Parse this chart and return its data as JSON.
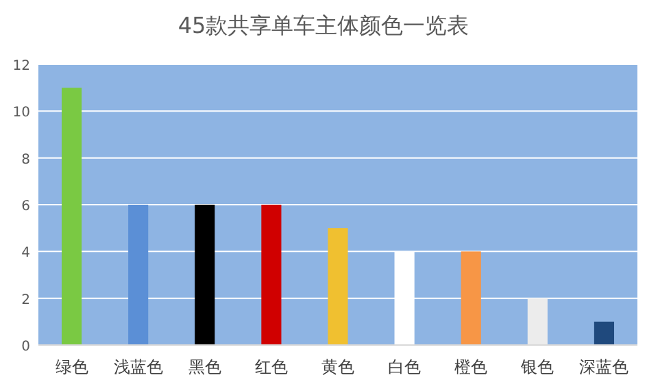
{
  "chart_data": {
    "type": "bar",
    "title": "45款共享单车主体颜色一览表",
    "categories": [
      "绿色",
      "浅蓝色",
      "黑色",
      "红色",
      "黄色",
      "白色",
      "橙色",
      "银色",
      "深蓝色"
    ],
    "values": [
      11,
      6,
      6,
      6,
      5,
      4,
      4,
      2,
      1
    ],
    "colors": [
      "#7ac943",
      "#5b8fd6",
      "#000000",
      "#d00000",
      "#f0c030",
      "#ffffff",
      "#f79646",
      "#ececec",
      "#1f497d"
    ],
    "ylim": [
      0,
      12
    ],
    "yticks": [
      0,
      2,
      4,
      6,
      8,
      10,
      12
    ],
    "grid": "y"
  }
}
